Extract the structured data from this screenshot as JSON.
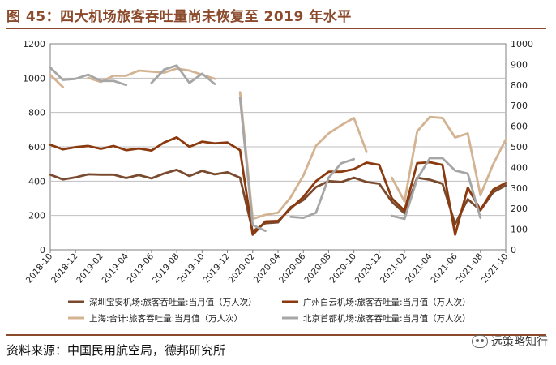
{
  "title": "图 45：四大机场旅客吞吐量尚未恢复至 2019 年水平",
  "source": "资料来源：中国民用航空局，德邦研究所",
  "watermark": "远策略知行",
  "chart_data": {
    "type": "line",
    "x": [
      "2018-10",
      "2018-11",
      "2018-12",
      "2019-01",
      "2019-02",
      "2019-03",
      "2019-04",
      "2019-05",
      "2019-06",
      "2019-07",
      "2019-08",
      "2019-09",
      "2019-10",
      "2019-11",
      "2019-12",
      "2020-01",
      "2020-02",
      "2020-03",
      "2020-04",
      "2020-05",
      "2020-06",
      "2020-07",
      "2020-08",
      "2020-09",
      "2020-10",
      "2020-11",
      "2020-12",
      "2021-01",
      "2021-02",
      "2021-03",
      "2021-04",
      "2021-05",
      "2021-06",
      "2021-07",
      "2021-08",
      "2021-09",
      "2021-10"
    ],
    "xticklabels": [
      "2018-10",
      "2018-12",
      "2019-02",
      "2019-04",
      "2019-06",
      "2019-08",
      "2019-10",
      "2019-12",
      "2020-02",
      "2020-04",
      "2020-06",
      "2020-08",
      "2020-10",
      "2020-12",
      "2021-02",
      "2021-04",
      "2021-06",
      "2021-08",
      "2021-10"
    ],
    "ylim_left": [
      0,
      1200
    ],
    "yticks_left": [
      0,
      200,
      400,
      600,
      800,
      1000,
      1200
    ],
    "ylim_right": [
      0,
      1000
    ],
    "yticks_right": [
      0,
      100,
      200,
      300,
      400,
      500,
      600,
      700,
      800,
      900,
      1000
    ],
    "grid": "horizontal",
    "legend_position": "bottom",
    "series": [
      {
        "name": "深圳宝安机场:旅客吞吐量:当月值（万人次）",
        "axis": "left",
        "color": "#7a4a2e",
        "values": [
          438,
          410,
          422,
          440,
          438,
          438,
          418,
          436,
          416,
          445,
          466,
          430,
          460,
          440,
          452,
          420,
          108,
          155,
          160,
          248,
          290,
          365,
          400,
          395,
          420,
          395,
          385,
          280,
          212,
          420,
          408,
          385,
          150,
          295,
          230,
          335,
          375
        ]
      },
      {
        "name": "广州白云机场:旅客吞吐量:当月值（万人次）",
        "axis": "left",
        "color": "#8b3a0f",
        "values": [
          612,
          585,
          598,
          605,
          588,
          605,
          580,
          590,
          578,
          625,
          655,
          600,
          630,
          620,
          625,
          580,
          88,
          165,
          168,
          240,
          308,
          400,
          455,
          455,
          470,
          508,
          495,
          300,
          228,
          505,
          510,
          495,
          88,
          362,
          232,
          350,
          390
        ]
      },
      {
        "name": "上海:合计:旅客吞吐量:当月值（万人次）",
        "axis": "right",
        "color": "#d4b393",
        "values": [
          850,
          790,
          null,
          835,
          815,
          845,
          845,
          870,
          865,
          860,
          880,
          870,
          850,
          830,
          null,
          765,
          150,
          170,
          180,
          255,
          360,
          505,
          565,
          605,
          640,
          475,
          null,
          350,
          235,
          575,
          645,
          640,
          545,
          565,
          265,
          415,
          535
        ]
      },
      {
        "name": "北京首都机场:旅客吞吐量:当月值（万人次）",
        "axis": "right",
        "color": "#a6a6a6",
        "values": [
          885,
          825,
          830,
          850,
          820,
          820,
          800,
          null,
          810,
          875,
          895,
          810,
          855,
          805,
          null,
          738,
          120,
          92,
          null,
          160,
          155,
          180,
          350,
          420,
          440,
          null,
          null,
          165,
          150,
          345,
          445,
          445,
          385,
          370,
          155,
          null,
          null
        ]
      }
    ]
  }
}
